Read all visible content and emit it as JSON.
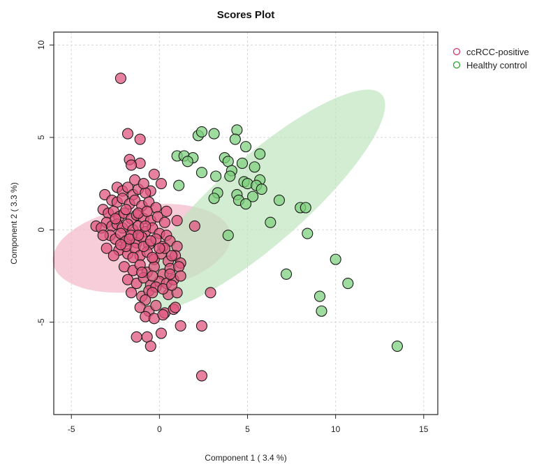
{
  "chart_data": {
    "type": "scatter",
    "title": "Scores Plot",
    "xlabel": "Component 1 ( 3.4 %)",
    "ylabel": "Component 2 ( 3.3 %)",
    "xlim": [
      -6,
      15.8
    ],
    "ylim": [
      -10,
      10.7
    ],
    "xticks": [
      -5,
      0,
      5,
      10,
      15
    ],
    "yticks": [
      -5,
      0,
      5,
      10
    ],
    "grid": true,
    "legend_position": "top-right",
    "series": [
      {
        "name": "ccRCC-positive",
        "color": "#d6336c",
        "fill": "#e0577f",
        "ellipse": {
          "cx": -1.0,
          "cy": -1.0,
          "rx": 2.3,
          "ry": 5.1,
          "angle_deg": -80,
          "fill": "#f2b8c8"
        },
        "points": [
          [
            -2.2,
            8.2
          ],
          [
            -1.8,
            5.2
          ],
          [
            -1.1,
            4.9
          ],
          [
            -1.7,
            3.8
          ],
          [
            -1.1,
            3.6
          ],
          [
            -1.6,
            3.5
          ],
          [
            -0.3,
            3.0
          ],
          [
            0.1,
            2.5
          ],
          [
            -0.5,
            2.1
          ],
          [
            -2.4,
            2.3
          ],
          [
            -2.1,
            2.1
          ],
          [
            -1.8,
            2.3
          ],
          [
            -1.5,
            1.9
          ],
          [
            -1.2,
            2.2
          ],
          [
            -0.8,
            2.0
          ],
          [
            -3.1,
            1.9
          ],
          [
            -2.7,
            1.6
          ],
          [
            -2.4,
            1.5
          ],
          [
            -2.1,
            1.7
          ],
          [
            -1.7,
            1.4
          ],
          [
            -1.4,
            1.6
          ],
          [
            -1.0,
            1.3
          ],
          [
            -0.6,
            1.5
          ],
          [
            -0.2,
            1.2
          ],
          [
            0.4,
            1.0
          ],
          [
            -3.2,
            1.1
          ],
          [
            -2.9,
            0.9
          ],
          [
            -2.6,
            1.0
          ],
          [
            -2.3,
            0.7
          ],
          [
            -2.0,
            0.9
          ],
          [
            -1.6,
            0.6
          ],
          [
            -1.3,
            0.8
          ],
          [
            -0.9,
            0.6
          ],
          [
            -0.5,
            0.5
          ],
          [
            -0.1,
            0.7
          ],
          [
            0.3,
            0.4
          ],
          [
            1.0,
            0.5
          ],
          [
            -3.0,
            0.4
          ],
          [
            -2.7,
            0.2
          ],
          [
            -2.4,
            0.3
          ],
          [
            -2.1,
            0.1
          ],
          [
            -1.8,
            0.3
          ],
          [
            -1.5,
            0.0
          ],
          [
            -1.2,
            0.2
          ],
          [
            -0.8,
            -0.1
          ],
          [
            -0.4,
            0.1
          ],
          [
            0.0,
            -0.2
          ],
          [
            0.4,
            -0.3
          ],
          [
            -3.6,
            0.2
          ],
          [
            -3.3,
            0.1
          ],
          [
            -2.8,
            -0.3
          ],
          [
            -2.5,
            -0.5
          ],
          [
            -2.2,
            -0.2
          ],
          [
            -1.9,
            -0.6
          ],
          [
            -1.6,
            -0.3
          ],
          [
            -1.3,
            -0.7
          ],
          [
            -1.0,
            -0.4
          ],
          [
            -0.6,
            -0.8
          ],
          [
            -0.2,
            -0.5
          ],
          [
            0.2,
            -0.9
          ],
          [
            0.6,
            -0.6
          ],
          [
            1.0,
            -0.9
          ],
          [
            -3.0,
            -1.0
          ],
          [
            -2.3,
            -1.1
          ],
          [
            -1.8,
            -1.3
          ],
          [
            -1.4,
            -1.0
          ],
          [
            -1.1,
            -1.4
          ],
          [
            -0.7,
            -1.2
          ],
          [
            -0.3,
            -1.6
          ],
          [
            0.1,
            -1.3
          ],
          [
            0.5,
            -1.7
          ],
          [
            0.9,
            -1.4
          ],
          [
            1.2,
            -1.8
          ],
          [
            -2.0,
            -2.0
          ],
          [
            -1.5,
            -2.2
          ],
          [
            -1.1,
            -1.9
          ],
          [
            -0.7,
            -2.3
          ],
          [
            -0.3,
            -2.0
          ],
          [
            0.2,
            -2.4
          ],
          [
            0.6,
            -2.1
          ],
          [
            1.1,
            -2.0
          ],
          [
            -1.8,
            -2.7
          ],
          [
            -1.3,
            -2.9
          ],
          [
            -0.9,
            -2.6
          ],
          [
            -0.5,
            -3.0
          ],
          [
            0.0,
            -2.8
          ],
          [
            0.4,
            -2.9
          ],
          [
            0.8,
            -2.7
          ],
          [
            -1.6,
            -3.4
          ],
          [
            -1.0,
            -3.6
          ],
          [
            -0.6,
            -3.3
          ],
          [
            -0.2,
            -3.1
          ],
          [
            0.5,
            -3.5
          ],
          [
            1.0,
            -3.4
          ],
          [
            -0.8,
            -3.8
          ],
          [
            -0.4,
            -3.4
          ],
          [
            -1.1,
            -4.2
          ],
          [
            -0.6,
            -4.4
          ],
          [
            -0.2,
            -4.1
          ],
          [
            0.3,
            -4.5
          ],
          [
            0.8,
            -4.3
          ],
          [
            -0.8,
            -4.7
          ],
          [
            -0.3,
            -4.8
          ],
          [
            0.2,
            -4.6
          ],
          [
            0.9,
            -4.2
          ],
          [
            1.2,
            -5.2
          ],
          [
            -1.3,
            -5.8
          ],
          [
            -0.7,
            -5.8
          ],
          [
            -0.5,
            -6.3
          ],
          [
            0.1,
            -5.6
          ],
          [
            2.4,
            -5.2
          ],
          [
            2.9,
            -3.4
          ],
          [
            2.0,
            0.2
          ],
          [
            2.4,
            -7.9
          ],
          [
            -2.6,
            -1.4
          ],
          [
            -3.2,
            -0.3
          ],
          [
            -1.9,
            -0.9
          ],
          [
            -1.5,
            -1.5
          ],
          [
            -0.9,
            -0.9
          ],
          [
            -0.4,
            -1.5
          ],
          [
            0.3,
            -1.0
          ],
          [
            0.7,
            -1.4
          ],
          [
            -1.2,
            0.9
          ],
          [
            -0.7,
            1.0
          ],
          [
            -1.4,
            2.7
          ],
          [
            -0.9,
            2.5
          ],
          [
            -1.9,
            1.1
          ],
          [
            -2.5,
            0.6
          ],
          [
            -1.7,
            -0.5
          ],
          [
            -1.2,
            -0.3
          ],
          [
            -0.5,
            -0.6
          ],
          [
            0.0,
            -1.0
          ],
          [
            0.6,
            -2.4
          ],
          [
            0.2,
            -3.2
          ],
          [
            -0.4,
            -2.5
          ],
          [
            -1.0,
            -2.3
          ],
          [
            0.7,
            -3.0
          ],
          [
            1.2,
            -2.5
          ],
          [
            -2.2,
            -0.8
          ],
          [
            -0.8,
            0.2
          ]
        ]
      },
      {
        "name": "Healthy control",
        "color": "#2ca02c",
        "fill": "#7fd07f",
        "ellipse": {
          "cx": 5.8,
          "cy": 1.6,
          "rx": 8.9,
          "ry": 2.4,
          "angle_deg": 40,
          "fill": "#bfe5bf"
        },
        "points": [
          [
            2.2,
            5.1
          ],
          [
            2.4,
            5.3
          ],
          [
            3.1,
            5.2
          ],
          [
            4.4,
            5.4
          ],
          [
            4.3,
            4.9
          ],
          [
            4.9,
            4.5
          ],
          [
            5.7,
            4.1
          ],
          [
            1.0,
            4.0
          ],
          [
            1.4,
            4.0
          ],
          [
            1.9,
            3.9
          ],
          [
            1.6,
            3.7
          ],
          [
            3.7,
            3.9
          ],
          [
            3.9,
            3.7
          ],
          [
            4.1,
            3.2
          ],
          [
            4.7,
            3.6
          ],
          [
            5.4,
            3.4
          ],
          [
            5.7,
            2.7
          ],
          [
            2.4,
            3.1
          ],
          [
            3.2,
            2.9
          ],
          [
            4.0,
            2.9
          ],
          [
            4.8,
            2.6
          ],
          [
            5.0,
            2.5
          ],
          [
            5.5,
            2.4
          ],
          [
            5.8,
            2.2
          ],
          [
            1.1,
            2.4
          ],
          [
            3.3,
            2.0
          ],
          [
            4.4,
            1.9
          ],
          [
            5.3,
            1.8
          ],
          [
            3.1,
            1.7
          ],
          [
            4.5,
            1.6
          ],
          [
            4.9,
            1.4
          ],
          [
            6.8,
            1.6
          ],
          [
            8.0,
            1.2
          ],
          [
            8.3,
            1.2
          ],
          [
            6.3,
            0.4
          ],
          [
            3.9,
            -0.3
          ],
          [
            8.4,
            -0.2
          ],
          [
            10.0,
            -1.6
          ],
          [
            7.2,
            -2.4
          ],
          [
            10.7,
            -2.9
          ],
          [
            9.1,
            -3.6
          ],
          [
            9.2,
            -4.4
          ],
          [
            13.5,
            -6.3
          ]
        ]
      }
    ]
  }
}
